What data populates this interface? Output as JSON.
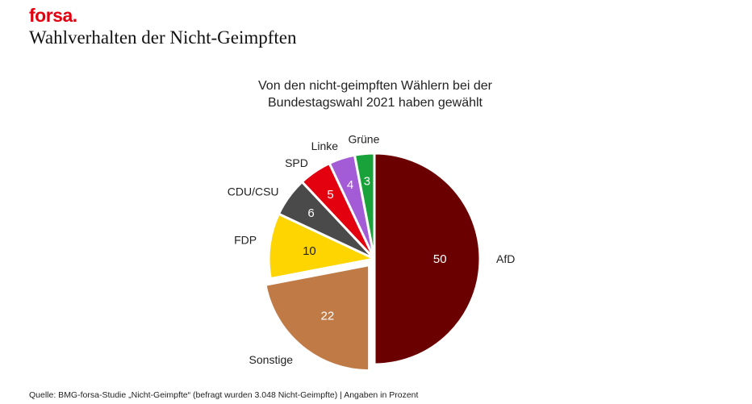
{
  "brand": {
    "logo_text": "forsa.",
    "logo_color": "#e3000f"
  },
  "page_title": "Wahlverhalten der Nicht-Geimpften",
  "chart_data": {
    "type": "pie",
    "title": "Von den nicht-geimpften Wählern bei der Bundestagswahl 2021 haben gewählt",
    "title_lines": [
      "Von den nicht-geimpften Wählern bei der",
      "Bundestagswahl 2021 haben gewählt"
    ],
    "unit": "Prozent",
    "slices": [
      {
        "label": "AfD",
        "value": 50,
        "color": "#6b0000",
        "value_label_color": "#ffffff"
      },
      {
        "label": "Sonstige",
        "value": 22,
        "color": "#c07a45",
        "value_label_color": "#ffffff",
        "exploded": true
      },
      {
        "label": "FDP",
        "value": 10,
        "color": "#ffd500",
        "value_label_color": "#222222"
      },
      {
        "label": "CDU/CSU",
        "value": 6,
        "color": "#4a4a4a",
        "value_label_color": "#ffffff"
      },
      {
        "label": "SPD",
        "value": 5,
        "color": "#e3000f",
        "value_label_color": "#ffffff"
      },
      {
        "label": "Linke",
        "value": 4,
        "color": "#a35bd6",
        "value_label_color": "#ffffff"
      },
      {
        "label": "Grüne",
        "value": 3,
        "color": "#1aa23a",
        "value_label_color": "#ffffff"
      }
    ]
  },
  "source_note": "Quelle: BMG-forsa-Studie „Nicht-Geimpfte“ (befragt wurden 3.048 Nicht-Geimpfte) | Angaben in Prozent"
}
